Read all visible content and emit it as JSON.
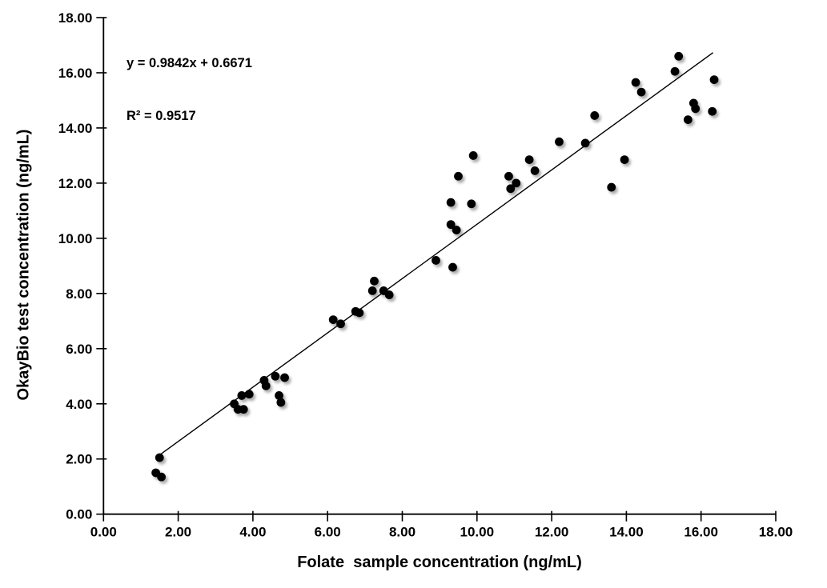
{
  "chart_data": {
    "type": "scatter",
    "title": "",
    "xlabel": "Folate  sample concentration (ng/mL)",
    "ylabel": "OkayBio test concentration (ng/mL)",
    "xlim": [
      0,
      18
    ],
    "ylim": [
      0,
      18
    ],
    "xtick_labels": [
      "0.00",
      "2.00",
      "4.00",
      "6.00",
      "8.00",
      "10.00",
      "12.00",
      "14.00",
      "16.00",
      "18.00"
    ],
    "ytick_labels": [
      "0.00",
      "2.00",
      "4.00",
      "6.00",
      "8.00",
      "10.00",
      "12.00",
      "14.00",
      "16.00",
      "18.00"
    ],
    "grid": false,
    "legend": "none",
    "marker_color": "#000000",
    "axis_color": "#000000",
    "trendline_color": "#000000",
    "annotation": {
      "equation": "y = 0.9842x + 0.6671",
      "r_squared": "R² = 0.9517"
    },
    "trendline": {
      "slope": 0.9842,
      "intercept": 0.6671,
      "x_start": 1.4,
      "x_end": 16.32
    },
    "points": [
      [
        1.4,
        1.5
      ],
      [
        1.55,
        1.35
      ],
      [
        1.5,
        2.05
      ],
      [
        3.5,
        4.0
      ],
      [
        3.6,
        3.8
      ],
      [
        3.75,
        3.8
      ],
      [
        3.7,
        4.3
      ],
      [
        3.9,
        4.35
      ],
      [
        4.3,
        4.85
      ],
      [
        4.35,
        4.65
      ],
      [
        4.6,
        5.0
      ],
      [
        4.85,
        4.95
      ],
      [
        4.7,
        4.3
      ],
      [
        4.75,
        4.05
      ],
      [
        6.15,
        7.05
      ],
      [
        6.35,
        6.9
      ],
      [
        6.75,
        7.35
      ],
      [
        6.85,
        7.3
      ],
      [
        7.2,
        8.1
      ],
      [
        7.25,
        8.45
      ],
      [
        7.5,
        8.1
      ],
      [
        7.65,
        7.95
      ],
      [
        8.9,
        9.2
      ],
      [
        9.35,
        8.95
      ],
      [
        9.3,
        10.5
      ],
      [
        9.45,
        10.3
      ],
      [
        9.3,
        11.3
      ],
      [
        9.85,
        11.25
      ],
      [
        9.5,
        12.25
      ],
      [
        9.9,
        13.0
      ],
      [
        10.85,
        12.25
      ],
      [
        11.05,
        12.0
      ],
      [
        10.9,
        11.8
      ],
      [
        11.4,
        12.85
      ],
      [
        11.55,
        12.45
      ],
      [
        12.2,
        13.5
      ],
      [
        12.9,
        13.45
      ],
      [
        13.15,
        14.45
      ],
      [
        13.6,
        11.85
      ],
      [
        13.95,
        12.85
      ],
      [
        14.25,
        15.65
      ],
      [
        14.4,
        15.3
      ],
      [
        15.3,
        16.05
      ],
      [
        15.4,
        16.6
      ],
      [
        15.65,
        14.3
      ],
      [
        15.8,
        14.9
      ],
      [
        15.85,
        14.7
      ],
      [
        16.3,
        14.6
      ],
      [
        16.35,
        15.75
      ]
    ]
  }
}
